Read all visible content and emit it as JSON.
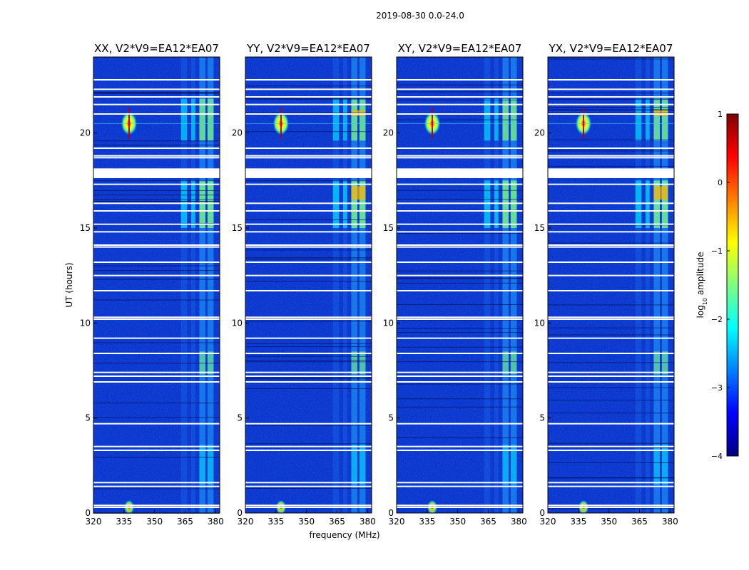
{
  "chart_data": {
    "type": "heatmap",
    "title": "2019-08-30 0.0-24.0",
    "xlabel": "frequency (MHz)",
    "ylabel": "UT (hours)",
    "xlim": [
      320,
      382
    ],
    "ylim": [
      0,
      24
    ],
    "x_ticks": [
      320,
      335,
      350,
      365,
      380
    ],
    "y_ticks": [
      0,
      5,
      10,
      15,
      20
    ],
    "panels": [
      {
        "title": "XX, V2*V9=EA12*EA07",
        "pol": "XX"
      },
      {
        "title": "YY, V2*V9=EA12*EA07",
        "pol": "YY"
      },
      {
        "title": "XY, V2*V9=EA12*EA07",
        "pol": "XY"
      },
      {
        "title": "YX, V2*V9=EA12*EA07",
        "pol": "YX"
      }
    ],
    "flagged_hours": [
      0.3,
      0.4,
      1.4,
      1.6,
      3.3,
      3.5,
      4.7,
      6.9,
      7.2,
      7.4,
      8.4,
      9.2,
      10.2,
      10.3,
      11.7,
      12.5,
      13.2,
      14.0,
      14.1,
      14.8,
      15.2,
      15.9,
      16.3,
      17.3,
      17.7,
      17.8,
      17.9,
      18.0,
      18.1,
      18.7,
      18.8,
      19.2,
      21.0,
      21.5,
      21.9,
      22.3,
      22.8
    ],
    "rfi_bands_mhz": [
      [
        363,
        366
      ],
      [
        368,
        370
      ],
      [
        372,
        375
      ],
      [
        376,
        379
      ]
    ],
    "rfi_strong_bands_mhz": [
      [
        372,
        375
      ],
      [
        376,
        379
      ]
    ],
    "bright_source": {
      "freq_mhz": 337.5,
      "ut_hours": 20.5,
      "log10_amplitude": 0.3
    },
    "bright_source_low": {
      "freq_mhz": 337.5,
      "ut_hours": 0.3
    },
    "colorbar": {
      "label": "log",
      "label_sub": "10",
      "label_rest": " amplitude",
      "min": -4,
      "max": 1,
      "ticks": [
        "1",
        "0",
        "−1",
        "−2",
        "−3",
        "−4"
      ],
      "tick_values": [
        1,
        0,
        -1,
        -2,
        -3,
        -4
      ],
      "colormap": [
        "#00007f",
        "#0000ff",
        "#007fff",
        "#00ffff",
        "#7fff7f",
        "#ffff00",
        "#ff7f00",
        "#ff0000",
        "#7f0000"
      ]
    }
  }
}
